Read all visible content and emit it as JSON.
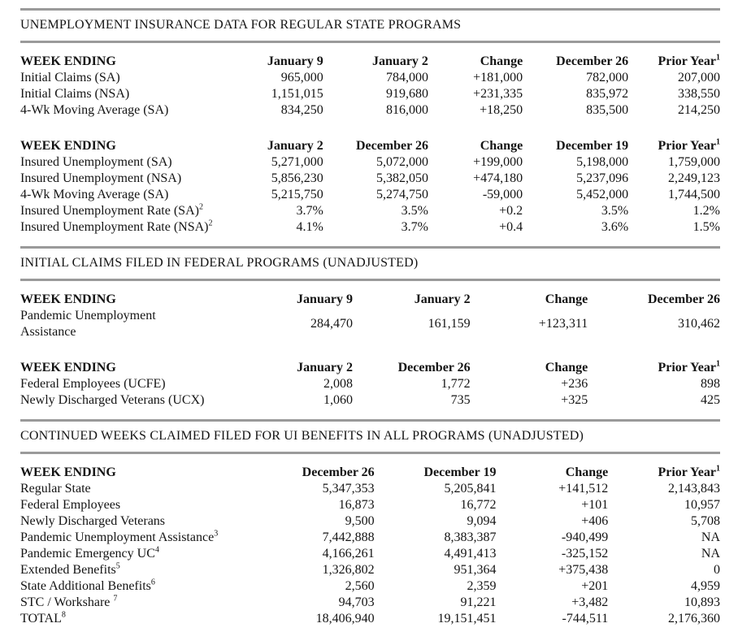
{
  "document": {
    "colors": {
      "background": "#ffffff",
      "text": "#141414",
      "rule": "#9a9a9a"
    },
    "sections": [
      {
        "title": "UNEMPLOYMENT INSURANCE DATA FOR REGULAR STATE PROGRAMS",
        "tables": [
          {
            "headers": [
              {
                "text": "WEEK ENDING"
              },
              {
                "text": "January 9"
              },
              {
                "text": "January 2"
              },
              {
                "text": "Change"
              },
              {
                "text": "December 26"
              },
              {
                "text": "Prior Year",
                "sup": "1"
              }
            ],
            "rows": [
              {
                "label": "Initial Claims (SA)",
                "values": [
                  "965,000",
                  "784,000",
                  "+181,000",
                  "782,000",
                  "207,000"
                ]
              },
              {
                "label": "Initial Claims (NSA)",
                "values": [
                  "1,151,015",
                  "919,680",
                  "+231,335",
                  "835,972",
                  "338,550"
                ]
              },
              {
                "label": "4-Wk Moving Average (SA)",
                "values": [
                  "834,250",
                  "816,000",
                  "+18,250",
                  "835,500",
                  "214,250"
                ]
              }
            ]
          },
          {
            "headers": [
              {
                "text": "WEEK ENDING"
              },
              {
                "text": "January 2"
              },
              {
                "text": "December 26"
              },
              {
                "text": "Change"
              },
              {
                "text": "December 19"
              },
              {
                "text": "Prior Year",
                "sup": "1"
              }
            ],
            "rows": [
              {
                "label": "Insured Unemployment (SA)",
                "values": [
                  "5,271,000",
                  "5,072,000",
                  "+199,000",
                  "5,198,000",
                  "1,759,000"
                ]
              },
              {
                "label": "Insured Unemployment (NSA)",
                "values": [
                  "5,856,230",
                  "5,382,050",
                  "+474,180",
                  "5,237,096",
                  "2,249,123"
                ]
              },
              {
                "label": "4-Wk Moving Average (SA)",
                "values": [
                  "5,215,750",
                  "5,274,750",
                  "-59,000",
                  "5,452,000",
                  "1,744,500"
                ]
              },
              {
                "label": "Insured Unemployment Rate (SA)",
                "label_sup": "2",
                "values": [
                  "3.7%",
                  "3.5%",
                  "+0.2",
                  "3.5%",
                  "1.2%"
                ]
              },
              {
                "label": "Insured Unemployment Rate (NSA)",
                "label_sup": "2",
                "values": [
                  "4.1%",
                  "3.7%",
                  "+0.4",
                  "3.6%",
                  "1.5%"
                ]
              }
            ]
          }
        ]
      },
      {
        "title": "INITIAL CLAIMS FILED IN FEDERAL PROGRAMS (UNADJUSTED)",
        "tables": [
          {
            "headers": [
              {
                "text": "WEEK ENDING"
              },
              {
                "text": "January 9"
              },
              {
                "text": "January 2"
              },
              {
                "text": "Change"
              },
              {
                "text": "December 26"
              }
            ],
            "rows": [
              {
                "label": "Pandemic Unemployment Assistance",
                "wrap": true,
                "values": [
                  "284,470",
                  "161,159",
                  "+123,311",
                  "310,462"
                ]
              }
            ]
          },
          {
            "headers": [
              {
                "text": "WEEK ENDING"
              },
              {
                "text": "January 2"
              },
              {
                "text": "December 26"
              },
              {
                "text": "Change"
              },
              {
                "text": "Prior Year",
                "sup": "1"
              }
            ],
            "rows": [
              {
                "label": "Federal Employees (UCFE)",
                "values": [
                  "2,008",
                  "1,772",
                  "+236",
                  "898"
                ]
              },
              {
                "label": "Newly Discharged Veterans (UCX)",
                "values": [
                  "1,060",
                  "735",
                  "+325",
                  "425"
                ]
              }
            ]
          }
        ]
      },
      {
        "title": "CONTINUED WEEKS CLAIMED FILED FOR UI BENEFITS IN ALL PROGRAMS (UNADJUSTED)",
        "tables": [
          {
            "headers": [
              {
                "text": "WEEK ENDING"
              },
              {
                "text": "December 26"
              },
              {
                "text": "December 19"
              },
              {
                "text": "Change"
              },
              {
                "text": "Prior Year",
                "sup": "1"
              }
            ],
            "rows": [
              {
                "label": "Regular State",
                "values": [
                  "5,347,353",
                  "5,205,841",
                  "+141,512",
                  "2,143,843"
                ]
              },
              {
                "label": "Federal Employees",
                "values": [
                  "16,873",
                  "16,772",
                  "+101",
                  "10,957"
                ]
              },
              {
                "label": "Newly Discharged Veterans",
                "values": [
                  "9,500",
                  "9,094",
                  "+406",
                  "5,708"
                ]
              },
              {
                "label": "Pandemic Unemployment Assistance",
                "label_sup": "3",
                "values": [
                  "7,442,888",
                  "8,383,387",
                  "-940,499",
                  "NA"
                ]
              },
              {
                "label": "Pandemic Emergency UC",
                "label_sup": "4",
                "values": [
                  "4,166,261",
                  "4,491,413",
                  "-325,152",
                  "NA"
                ]
              },
              {
                "label": "Extended Benefits",
                "label_sup": "5",
                "values": [
                  "1,326,802",
                  "951,364",
                  "+375,438",
                  "0"
                ]
              },
              {
                "label": "State Additional Benefits",
                "label_sup": "6",
                "values": [
                  "2,560",
                  "2,359",
                  "+201",
                  "4,959"
                ]
              },
              {
                "label": "STC / Workshare ",
                "label_sup": "7",
                "values": [
                  "94,703",
                  "91,221",
                  "+3,482",
                  "10,893"
                ]
              },
              {
                "label": "TOTAL",
                "label_sup": "8",
                "values": [
                  "18,406,940",
                  "19,151,451",
                  "-744,511",
                  "2,176,360"
                ]
              }
            ]
          }
        ]
      }
    ]
  }
}
